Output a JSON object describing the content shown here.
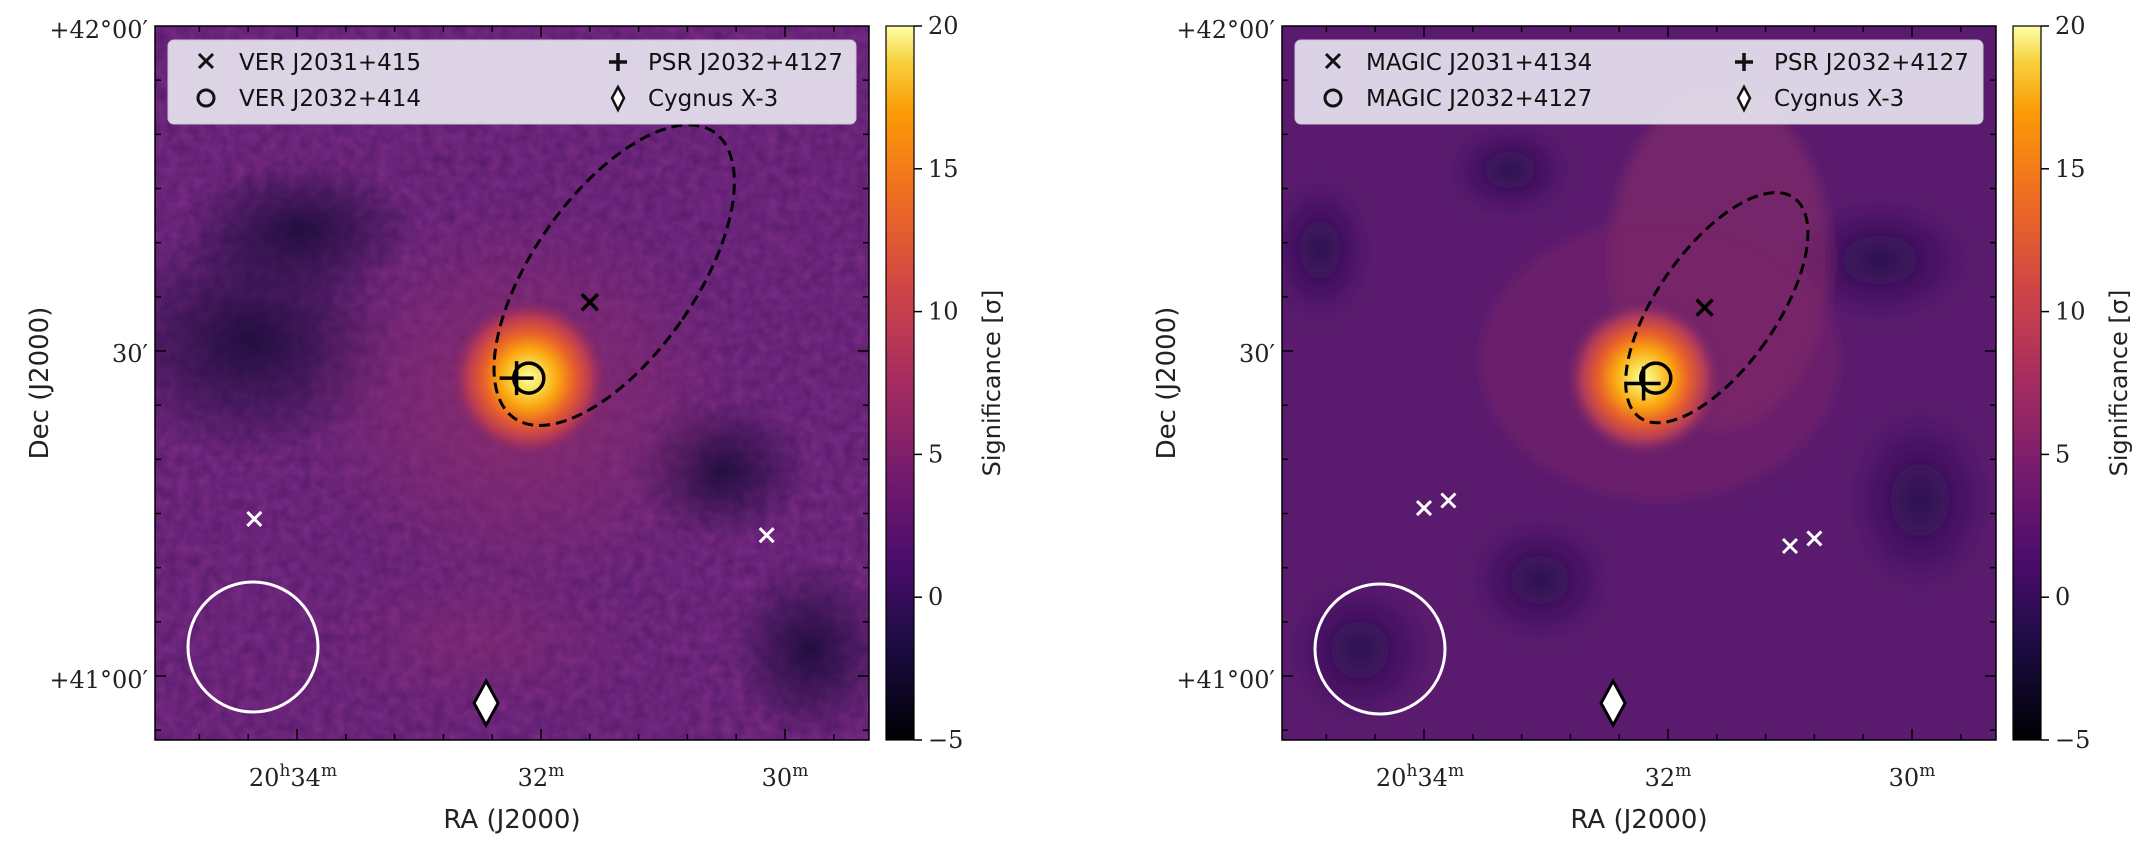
{
  "chart_data": [
    {
      "type": "heatmap",
      "panel": "left",
      "xlabel": "RA (J2000)",
      "ylabel": "Dec (J2000)",
      "x_ticks": [
        {
          "label": "20",
          "sup": "h",
          "mid": "34",
          "sup2": "m",
          "ra_min": 34
        },
        {
          "label": "32",
          "sup": "m",
          "ra_min": 32
        },
        {
          "label": "30",
          "sup": "m",
          "ra_min": 30
        }
      ],
      "y_ticks": [
        {
          "label": "+42°00′",
          "dec_arcmin": 60
        },
        {
          "label": "30′",
          "dec_arcmin": 30
        },
        {
          "label": "+41°00′",
          "dec_arcmin": 0
        }
      ],
      "colorbar": {
        "label": "Significance [σ]",
        "vmin": -5,
        "vmax": 20,
        "ticks": [
          "20",
          "15",
          "10",
          "5",
          "0",
          "−5"
        ],
        "tick_values": [
          20,
          15,
          10,
          5,
          0,
          -5
        ]
      },
      "legend": [
        {
          "marker": "x",
          "text": "VER J2031+415"
        },
        {
          "marker": "o",
          "text": "VER J2032+414"
        },
        {
          "marker": "+",
          "text": "PSR J2032+4127"
        },
        {
          "marker": "diamond",
          "text": "Cygnus X-3"
        }
      ],
      "hotspot": {
        "ra_min": 32.1,
        "dec_arcmin": 27.5,
        "peak_sigma": 20
      },
      "sources": {
        "extended_centroid": {
          "ra_min": 31.6,
          "dec_arcmin": 34.5
        },
        "ellipse": {
          "ra_min": 31.4,
          "dec_arcmin": 37,
          "semi_major_ra_min": 0.65,
          "semi_minor_arcmin": 7.5,
          "angle_deg": -35
        },
        "point_source": {
          "ra_min": 32.1,
          "dec_arcmin": 27.5
        },
        "pulsar": {
          "ra_min": 32.2,
          "dec_arcmin": 27.5
        },
        "cygnus_x3": {
          "ra_min": 32.45,
          "dec_arcmin": -2.5
        },
        "white_crosses": [
          {
            "ra_min": 34.35,
            "dec_arcmin": 14.5
          },
          {
            "ra_min": 30.15,
            "dec_arcmin": 13
          }
        ]
      }
    },
    {
      "type": "heatmap",
      "panel": "right",
      "xlabel": "RA (J2000)",
      "ylabel": "Dec (J2000)",
      "x_ticks": [
        {
          "label": "20",
          "sup": "h",
          "mid": "34",
          "sup2": "m",
          "ra_min": 34
        },
        {
          "label": "32",
          "sup": "m",
          "ra_min": 32
        },
        {
          "label": "30",
          "sup": "m",
          "ra_min": 30
        }
      ],
      "y_ticks": [
        {
          "label": "+42°00′",
          "dec_arcmin": 60
        },
        {
          "label": "30′",
          "dec_arcmin": 30
        },
        {
          "label": "+41°00′",
          "dec_arcmin": 0
        }
      ],
      "colorbar": {
        "label": "Significance [σ]",
        "vmin": -5,
        "vmax": 20,
        "ticks": [
          "20",
          "15",
          "10",
          "5",
          "0",
          "−5"
        ],
        "tick_values": [
          20,
          15,
          10,
          5,
          0,
          -5
        ]
      },
      "legend": [
        {
          "marker": "x",
          "text": "MAGIC J2031+4134"
        },
        {
          "marker": "o",
          "text": "MAGIC J2032+4127"
        },
        {
          "marker": "+",
          "text": "PSR J2032+4127"
        },
        {
          "marker": "diamond",
          "text": "Cygnus X-3"
        }
      ],
      "hotspot": {
        "ra_min": 32.2,
        "dec_arcmin": 27.5,
        "peak_sigma": 20
      },
      "sources": {
        "extended_centroid": {
          "ra_min": 31.7,
          "dec_arcmin": 34
        },
        "ellipse": {
          "ra_min": 31.6,
          "dec_arcmin": 34,
          "semi_major_ra_min": 0.5,
          "semi_minor_arcmin": 5.5,
          "angle_deg": -35
        },
        "point_source": {
          "ra_min": 32.1,
          "dec_arcmin": 27.5
        },
        "pulsar": {
          "ra_min": 32.2,
          "dec_arcmin": 27
        },
        "cygnus_x3": {
          "ra_min": 32.45,
          "dec_arcmin": -2.5
        },
        "white_crosses": [
          {
            "ra_min": 34.0,
            "dec_arcmin": 15.5
          },
          {
            "ra_min": 33.8,
            "dec_arcmin": 16.2
          },
          {
            "ra_min": 31.0,
            "dec_arcmin": 12
          },
          {
            "ra_min": 30.8,
            "dec_arcmin": 12.7
          }
        ]
      }
    }
  ]
}
